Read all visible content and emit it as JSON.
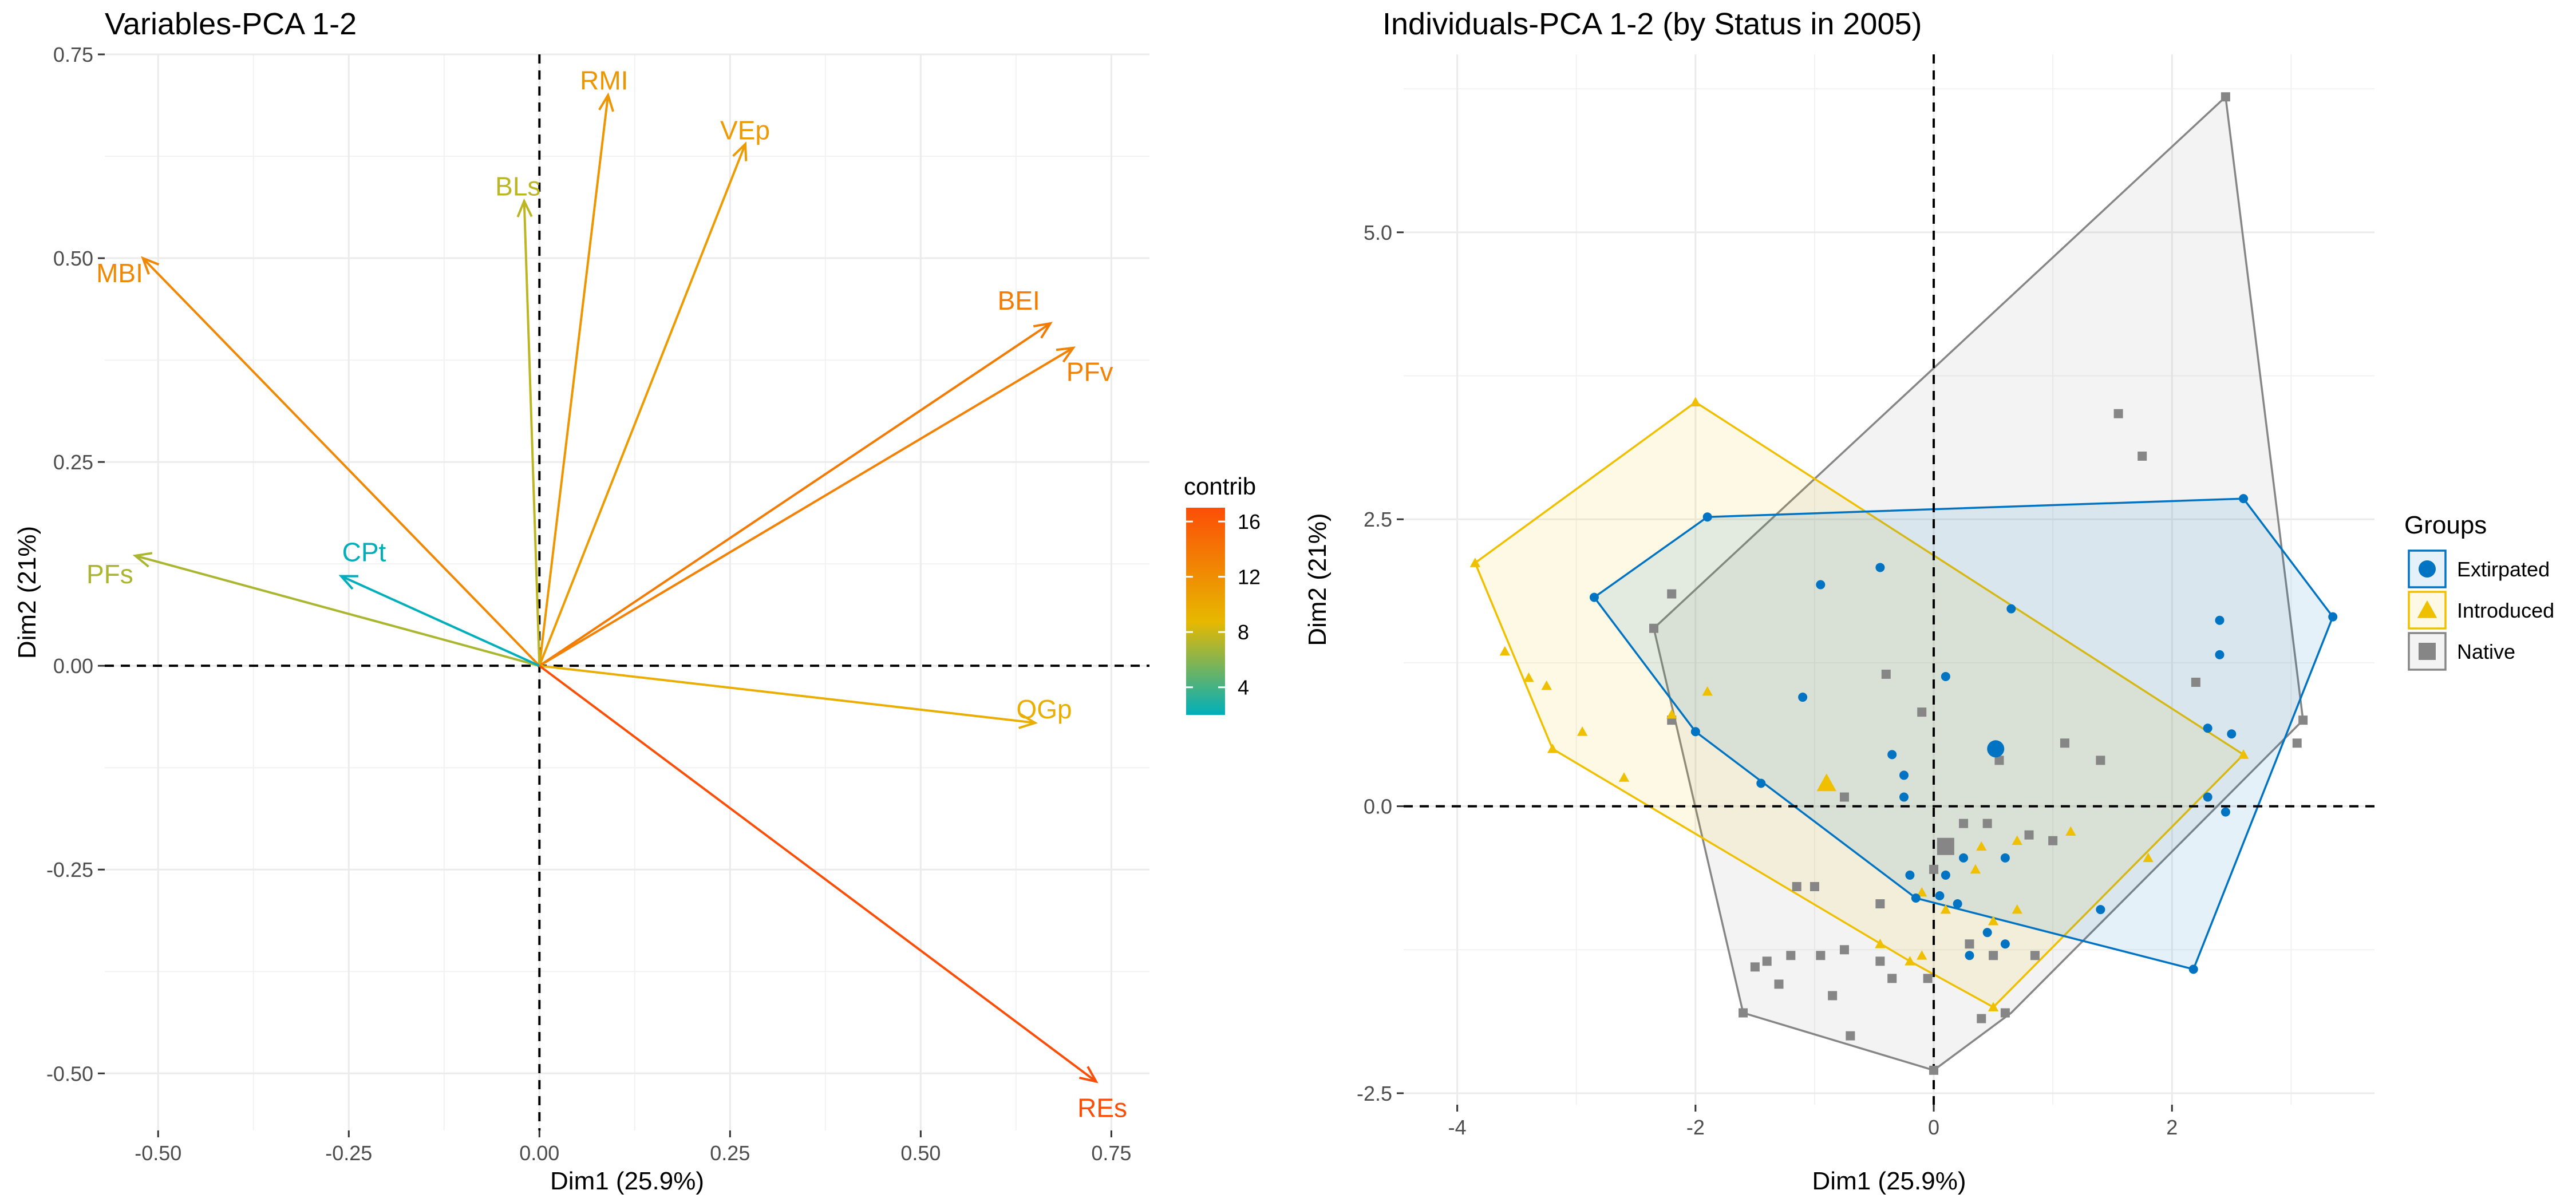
{
  "chart_data": [
    {
      "type": "biplot-variables",
      "title": "Variables-PCA 1-2",
      "xlabel": "Dim1 (25.9%)",
      "ylabel": "Dim2 (21%)",
      "xlim": [
        -0.57,
        0.8
      ],
      "ylim": [
        -0.57,
        0.75
      ],
      "xticks": [
        -0.5,
        -0.25,
        0.0,
        0.25,
        0.5,
        0.75
      ],
      "xtick_labels": [
        "-0.50",
        "-0.25",
        "0.00",
        "0.25",
        "0.50",
        "0.75"
      ],
      "yticks": [
        -0.5,
        -0.25,
        0.0,
        0.25,
        0.5,
        0.75
      ],
      "ytick_labels": [
        "-0.50",
        "-0.25",
        "0.00",
        "0.25",
        "0.50",
        "0.75"
      ],
      "grid": true,
      "reference_lines": "dashed at x=0 and y=0",
      "legend": {
        "title": "contrib",
        "placement": "right",
        "range": [
          2,
          17
        ],
        "ticks": [
          4,
          8,
          12,
          16
        ],
        "tick_labels": [
          "4",
          "8",
          "12",
          "16"
        ],
        "colors": [
          "#00AFBB",
          "#E7B800",
          "#FC4E07"
        ]
      },
      "vectors": [
        {
          "name": "RMI",
          "x": 0.09,
          "y": 0.7,
          "contrib": 11.5
        },
        {
          "name": "VEp",
          "x": 0.27,
          "y": 0.64,
          "contrib": 11
        },
        {
          "name": "BLs",
          "x": -0.02,
          "y": 0.57,
          "contrib": 7.5
        },
        {
          "name": "MBI",
          "x": -0.52,
          "y": 0.5,
          "contrib": 12.5
        },
        {
          "name": "BEI",
          "x": 0.67,
          "y": 0.42,
          "contrib": 13.5
        },
        {
          "name": "PFv",
          "x": 0.7,
          "y": 0.39,
          "contrib": 13
        },
        {
          "name": "PFs",
          "x": -0.53,
          "y": 0.135,
          "contrib": 7
        },
        {
          "name": "CPt",
          "x": -0.26,
          "y": 0.11,
          "contrib": 2
        },
        {
          "name": "OGp",
          "x": 0.65,
          "y": -0.07,
          "contrib": 9.5
        },
        {
          "name": "REs",
          "x": 0.73,
          "y": -0.51,
          "contrib": 17
        }
      ]
    },
    {
      "type": "scatter",
      "title": "Individuals-PCA 1-2 (by Status in 2005)",
      "xlabel": "Dim1 (25.9%)",
      "ylabel": "Dim2 (21%)",
      "xlim": [
        -4.45,
        3.7
      ],
      "ylim": [
        -2.6,
        6.55
      ],
      "xticks": [
        -4,
        -2,
        0,
        2
      ],
      "xtick_labels": [
        "-4",
        "-2",
        "0",
        "2"
      ],
      "yticks": [
        -2.5,
        0,
        2.5,
        5
      ],
      "ytick_labels": [
        "-2.5",
        "0.0",
        "2.5",
        "5.0"
      ],
      "grid": true,
      "reference_lines": "dashed at x=0 and y=0",
      "legend": {
        "title": "Groups",
        "placement": "right"
      },
      "series": [
        {
          "name": "Extirpated",
          "color": "#0073C2",
          "marker": "circle",
          "centroid": [
            0.52,
            0.5
          ],
          "hull": [
            [
              -1.9,
              2.52
            ],
            [
              2.6,
              2.68
            ],
            [
              3.35,
              1.65
            ],
            [
              2.18,
              -1.42
            ],
            [
              -0.15,
              -0.8
            ],
            [
              -2.0,
              0.65
            ],
            [
              -2.85,
              1.82
            ]
          ],
          "points": [
            [
              -2.85,
              1.82
            ],
            [
              -1.9,
              2.52
            ],
            [
              2.6,
              2.68
            ],
            [
              3.35,
              1.65
            ],
            [
              -0.95,
              1.93
            ],
            [
              -0.45,
              2.08
            ],
            [
              0.65,
              1.72
            ],
            [
              2.4,
              1.62
            ],
            [
              2.4,
              1.32
            ],
            [
              -1.1,
              0.95
            ],
            [
              0.1,
              1.13
            ],
            [
              -2.0,
              0.65
            ],
            [
              2.3,
              0.68
            ],
            [
              2.5,
              0.63
            ],
            [
              -0.35,
              0.45
            ],
            [
              -0.25,
              0.27
            ],
            [
              -0.25,
              0.08
            ],
            [
              -1.45,
              0.2
            ],
            [
              2.3,
              0.08
            ],
            [
              2.45,
              -0.05
            ],
            [
              -0.2,
              -0.6
            ],
            [
              0.1,
              -0.6
            ],
            [
              0.25,
              -0.45
            ],
            [
              0.6,
              -0.45
            ],
            [
              -0.15,
              -0.8
            ],
            [
              0.2,
              -0.85
            ],
            [
              0.05,
              -0.78
            ],
            [
              0.45,
              -1.1
            ],
            [
              0.6,
              -1.2
            ],
            [
              0.3,
              -1.3
            ],
            [
              1.4,
              -0.9
            ],
            [
              2.18,
              -1.42
            ]
          ]
        },
        {
          "name": "Introduced",
          "color": "#EFC000",
          "marker": "triangle",
          "centroid": [
            -0.9,
            0.2
          ],
          "hull": [
            [
              -2.0,
              3.52
            ],
            [
              2.6,
              0.45
            ],
            [
              0.5,
              -1.75
            ],
            [
              -0.2,
              -1.35
            ],
            [
              -3.2,
              0.5
            ],
            [
              -3.85,
              2.12
            ]
          ],
          "points": [
            [
              -2.0,
              3.52
            ],
            [
              -3.85,
              2.12
            ],
            [
              -3.6,
              1.35
            ],
            [
              -3.4,
              1.12
            ],
            [
              -3.25,
              1.05
            ],
            [
              -2.95,
              0.65
            ],
            [
              -3.2,
              0.5
            ],
            [
              -2.6,
              0.25
            ],
            [
              -2.2,
              0.8
            ],
            [
              -1.9,
              1.0
            ],
            [
              2.6,
              0.45
            ],
            [
              1.8,
              -0.45
            ],
            [
              1.15,
              -0.22
            ],
            [
              0.7,
              -0.3
            ],
            [
              0.4,
              -0.35
            ],
            [
              0.35,
              -0.55
            ],
            [
              0.7,
              -0.9
            ],
            [
              0.5,
              -1.0
            ],
            [
              0.1,
              -0.9
            ],
            [
              -0.1,
              -0.75
            ],
            [
              -0.45,
              -1.2
            ],
            [
              -0.2,
              -1.35
            ],
            [
              -0.1,
              -1.3
            ],
            [
              0.5,
              -1.75
            ]
          ]
        },
        {
          "name": "Native",
          "color": "#868686",
          "marker": "square",
          "centroid": [
            0.1,
            -0.35
          ],
          "hull": [
            [
              2.45,
              6.18
            ],
            [
              3.1,
              0.75
            ],
            [
              0.65,
              -1.8
            ],
            [
              0.0,
              -2.3
            ],
            [
              -1.6,
              -1.8
            ],
            [
              -2.35,
              1.55
            ]
          ],
          "points": [
            [
              2.45,
              6.18
            ],
            [
              1.55,
              3.42
            ],
            [
              1.75,
              3.05
            ],
            [
              -2.2,
              1.85
            ],
            [
              -2.35,
              1.55
            ],
            [
              3.1,
              0.75
            ],
            [
              3.05,
              0.55
            ],
            [
              2.2,
              1.08
            ],
            [
              -0.4,
              1.15
            ],
            [
              -0.1,
              0.82
            ],
            [
              1.1,
              0.55
            ],
            [
              1.4,
              0.4
            ],
            [
              0.55,
              0.4
            ],
            [
              -0.75,
              0.08
            ],
            [
              -2.2,
              0.75
            ],
            [
              0.25,
              -0.15
            ],
            [
              0.45,
              -0.15
            ],
            [
              0.8,
              -0.25
            ],
            [
              1.0,
              -0.3
            ],
            [
              0.0,
              -0.55
            ],
            [
              -1.15,
              -0.7
            ],
            [
              -1.0,
              -0.7
            ],
            [
              -0.45,
              -0.85
            ],
            [
              0.3,
              -1.2
            ],
            [
              0.5,
              -1.3
            ],
            [
              0.85,
              -1.3
            ],
            [
              -0.45,
              -1.35
            ],
            [
              -0.95,
              -1.3
            ],
            [
              -1.2,
              -1.3
            ],
            [
              -1.4,
              -1.35
            ],
            [
              -1.5,
              -1.4
            ],
            [
              -0.75,
              -1.25
            ],
            [
              -1.3,
              -1.55
            ],
            [
              -0.85,
              -1.65
            ],
            [
              -0.35,
              -1.5
            ],
            [
              -0.05,
              -1.5
            ],
            [
              0.6,
              -1.8
            ],
            [
              0.4,
              -1.85
            ],
            [
              -0.7,
              -2.0
            ],
            [
              -1.6,
              -1.8
            ],
            [
              0.0,
              -2.3
            ]
          ]
        }
      ]
    }
  ]
}
